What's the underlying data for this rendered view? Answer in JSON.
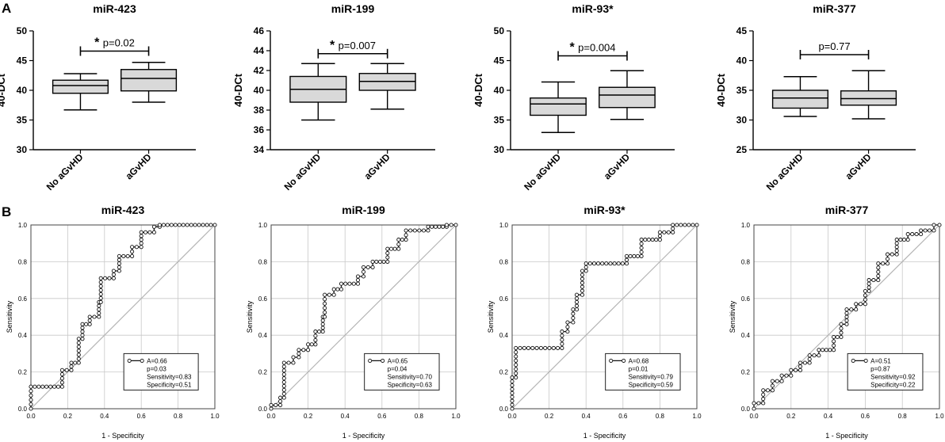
{
  "figure": {
    "panel_a_label": "A",
    "panel_b_label": "B"
  },
  "colors": {
    "box_fill": "#d9d9d9",
    "axis": "#000000",
    "grid": "#c8c8c8",
    "diagonal": "#b5b5b5",
    "roc_line": "#111111",
    "marker_fill": "#ffffff"
  },
  "chart_data": [
    {
      "type": "box",
      "title": "miR-423",
      "ylabel": "40-DCt",
      "xlabel": "",
      "ylim": [
        30,
        50
      ],
      "yticks": [
        30,
        35,
        40,
        45,
        50
      ],
      "categories": [
        "No aGvHD",
        "aGvHD"
      ],
      "boxes": [
        {
          "min": 36.7,
          "q1": 39.5,
          "median": 40.8,
          "q3": 41.7,
          "max": 42.8
        },
        {
          "min": 38.0,
          "q1": 39.9,
          "median": 42.0,
          "q3": 43.5,
          "max": 44.7
        }
      ],
      "significance": {
        "star": "*",
        "label": "p=0.02",
        "y": 46.6
      }
    },
    {
      "type": "box",
      "title": "miR-199",
      "ylabel": "40-DCt",
      "xlabel": "",
      "ylim": [
        34,
        46
      ],
      "yticks": [
        34,
        36,
        38,
        40,
        42,
        44,
        46
      ],
      "categories": [
        "No aGvHD",
        "aGvHD"
      ],
      "boxes": [
        {
          "min": 37.0,
          "q1": 38.8,
          "median": 40.1,
          "q3": 41.4,
          "max": 42.7
        },
        {
          "min": 38.1,
          "q1": 40.0,
          "median": 40.9,
          "q3": 41.7,
          "max": 42.7
        }
      ],
      "significance": {
        "star": "*",
        "label": "p=0.007",
        "y": 43.7
      }
    },
    {
      "type": "box",
      "title": "miR-93*",
      "ylabel": "40-DCt",
      "xlabel": "",
      "ylim": [
        30,
        50
      ],
      "yticks": [
        30,
        35,
        40,
        45,
        50
      ],
      "categories": [
        "No aGvHD",
        "aGvHD"
      ],
      "boxes": [
        {
          "min": 32.9,
          "q1": 35.8,
          "median": 37.7,
          "q3": 38.7,
          "max": 41.4
        },
        {
          "min": 35.1,
          "q1": 37.1,
          "median": 39.2,
          "q3": 40.5,
          "max": 43.3
        }
      ],
      "significance": {
        "star": "*",
        "label": "p=0.004",
        "y": 45.8
      }
    },
    {
      "type": "box",
      "title": "miR-377",
      "ylabel": "40-DCt",
      "xlabel": "",
      "ylim": [
        25,
        45
      ],
      "yticks": [
        25,
        30,
        35,
        40,
        45
      ],
      "categories": [
        "No aGvHD",
        "aGvHD"
      ],
      "boxes": [
        {
          "min": 30.6,
          "q1": 32.0,
          "median": 33.7,
          "q3": 35.0,
          "max": 37.3
        },
        {
          "min": 30.2,
          "q1": 32.5,
          "median": 33.6,
          "q3": 34.9,
          "max": 38.3
        }
      ],
      "significance": {
        "star": "",
        "label": "p=0.77",
        "y": 41.0
      }
    },
    {
      "type": "line",
      "title": "miR-423",
      "xlabel": "1 - Specificity",
      "ylabel": "Sensitivity",
      "xlim": [
        0,
        1
      ],
      "ylim": [
        0,
        1
      ],
      "ticks": [
        "0.0",
        "0.2",
        "0.4",
        "0.6",
        "0.8",
        "1.0"
      ],
      "legend": [
        "A=0.66",
        "p=0.03",
        "Sensitivity=0.83",
        "Specificity=0.51"
      ],
      "roc": [
        [
          0,
          0
        ],
        [
          0,
          0.12
        ],
        [
          0.17,
          0.12
        ],
        [
          0.17,
          0.21
        ],
        [
          0.22,
          0.21
        ],
        [
          0.22,
          0.25
        ],
        [
          0.26,
          0.25
        ],
        [
          0.26,
          0.38
        ],
        [
          0.28,
          0.38
        ],
        [
          0.28,
          0.46
        ],
        [
          0.32,
          0.46
        ],
        [
          0.32,
          0.5
        ],
        [
          0.37,
          0.5
        ],
        [
          0.37,
          0.58
        ],
        [
          0.38,
          0.58
        ],
        [
          0.38,
          0.71
        ],
        [
          0.45,
          0.71
        ],
        [
          0.45,
          0.75
        ],
        [
          0.48,
          0.75
        ],
        [
          0.48,
          0.83
        ],
        [
          0.55,
          0.83
        ],
        [
          0.55,
          0.88
        ],
        [
          0.6,
          0.88
        ],
        [
          0.6,
          0.96
        ],
        [
          0.67,
          0.96
        ],
        [
          0.67,
          0.99
        ],
        [
          0.7,
          0.99
        ],
        [
          0.7,
          1
        ],
        [
          1,
          1
        ]
      ]
    },
    {
      "type": "line",
      "title": "miR-199",
      "xlabel": "1 - Specificity",
      "ylabel": "Sensitivity",
      "xlim": [
        0,
        1
      ],
      "ylim": [
        0,
        1
      ],
      "ticks": [
        "0.0",
        "0.2",
        "0.4",
        "0.6",
        "0.8",
        "1.0"
      ],
      "legend": [
        "A=0.65",
        "p=0.04",
        "Sensitivity=0.70",
        "Specificity=0.63"
      ],
      "roc": [
        [
          0,
          0
        ],
        [
          0,
          0.02
        ],
        [
          0.05,
          0.02
        ],
        [
          0.05,
          0.06
        ],
        [
          0.07,
          0.06
        ],
        [
          0.07,
          0.25
        ],
        [
          0.12,
          0.25
        ],
        [
          0.12,
          0.28
        ],
        [
          0.15,
          0.28
        ],
        [
          0.15,
          0.32
        ],
        [
          0.2,
          0.32
        ],
        [
          0.2,
          0.35
        ],
        [
          0.24,
          0.35
        ],
        [
          0.24,
          0.42
        ],
        [
          0.28,
          0.42
        ],
        [
          0.28,
          0.5
        ],
        [
          0.29,
          0.5
        ],
        [
          0.29,
          0.62
        ],
        [
          0.34,
          0.62
        ],
        [
          0.34,
          0.65
        ],
        [
          0.38,
          0.65
        ],
        [
          0.38,
          0.68
        ],
        [
          0.47,
          0.68
        ],
        [
          0.47,
          0.72
        ],
        [
          0.5,
          0.72
        ],
        [
          0.5,
          0.77
        ],
        [
          0.55,
          0.77
        ],
        [
          0.55,
          0.8
        ],
        [
          0.63,
          0.8
        ],
        [
          0.63,
          0.87
        ],
        [
          0.69,
          0.87
        ],
        [
          0.69,
          0.92
        ],
        [
          0.73,
          0.92
        ],
        [
          0.73,
          0.97
        ],
        [
          0.85,
          0.97
        ],
        [
          0.85,
          0.99
        ],
        [
          0.95,
          0.99
        ],
        [
          0.95,
          1
        ],
        [
          1,
          1
        ]
      ]
    },
    {
      "type": "line",
      "title": "miR-93*",
      "xlabel": "1 - Specificity",
      "ylabel": "Sensitivity",
      "xlim": [
        0,
        1
      ],
      "ylim": [
        0,
        1
      ],
      "ticks": [
        "0.0",
        "0.2",
        "0.4",
        "0.6",
        "0.8",
        "1.0"
      ],
      "legend": [
        "A=0.68",
        "p=0.01",
        "Sensitivity=0.79",
        "Specificity=0.59"
      ],
      "roc": [
        [
          0,
          0
        ],
        [
          0,
          0.17
        ],
        [
          0.02,
          0.17
        ],
        [
          0.02,
          0.33
        ],
        [
          0.27,
          0.33
        ],
        [
          0.27,
          0.42
        ],
        [
          0.3,
          0.42
        ],
        [
          0.3,
          0.47
        ],
        [
          0.33,
          0.47
        ],
        [
          0.33,
          0.54
        ],
        [
          0.35,
          0.54
        ],
        [
          0.35,
          0.62
        ],
        [
          0.38,
          0.62
        ],
        [
          0.38,
          0.75
        ],
        [
          0.4,
          0.75
        ],
        [
          0.4,
          0.79
        ],
        [
          0.62,
          0.79
        ],
        [
          0.62,
          0.83
        ],
        [
          0.7,
          0.83
        ],
        [
          0.7,
          0.92
        ],
        [
          0.8,
          0.92
        ],
        [
          0.8,
          0.96
        ],
        [
          0.87,
          0.96
        ],
        [
          0.87,
          1
        ],
        [
          1,
          1
        ]
      ]
    },
    {
      "type": "line",
      "title": "miR-377",
      "xlabel": "1 - Specificity",
      "ylabel": "Sensitivity",
      "xlim": [
        0,
        1
      ],
      "ylim": [
        0,
        1
      ],
      "ticks": [
        "0.0",
        "0.2",
        "0.4",
        "0.6",
        "0.8",
        "1.0"
      ],
      "legend": [
        "A=0.51",
        "p=0.87",
        "Sensitivity=0.92",
        "Specificity=0.22"
      ],
      "roc": [
        [
          0,
          0
        ],
        [
          0,
          0.03
        ],
        [
          0.05,
          0.03
        ],
        [
          0.05,
          0.1
        ],
        [
          0.1,
          0.1
        ],
        [
          0.1,
          0.15
        ],
        [
          0.15,
          0.15
        ],
        [
          0.15,
          0.18
        ],
        [
          0.2,
          0.18
        ],
        [
          0.2,
          0.21
        ],
        [
          0.25,
          0.21
        ],
        [
          0.25,
          0.25
        ],
        [
          0.3,
          0.25
        ],
        [
          0.3,
          0.29
        ],
        [
          0.35,
          0.29
        ],
        [
          0.35,
          0.32
        ],
        [
          0.43,
          0.32
        ],
        [
          0.43,
          0.39
        ],
        [
          0.47,
          0.39
        ],
        [
          0.47,
          0.46
        ],
        [
          0.5,
          0.46
        ],
        [
          0.5,
          0.54
        ],
        [
          0.55,
          0.54
        ],
        [
          0.55,
          0.57
        ],
        [
          0.6,
          0.57
        ],
        [
          0.6,
          0.64
        ],
        [
          0.62,
          0.64
        ],
        [
          0.62,
          0.7
        ],
        [
          0.67,
          0.7
        ],
        [
          0.67,
          0.79
        ],
        [
          0.72,
          0.79
        ],
        [
          0.72,
          0.84
        ],
        [
          0.77,
          0.84
        ],
        [
          0.77,
          0.92
        ],
        [
          0.83,
          0.92
        ],
        [
          0.83,
          0.95
        ],
        [
          0.9,
          0.95
        ],
        [
          0.9,
          0.97
        ],
        [
          0.97,
          0.97
        ],
        [
          0.97,
          1
        ],
        [
          1,
          1
        ]
      ]
    }
  ]
}
